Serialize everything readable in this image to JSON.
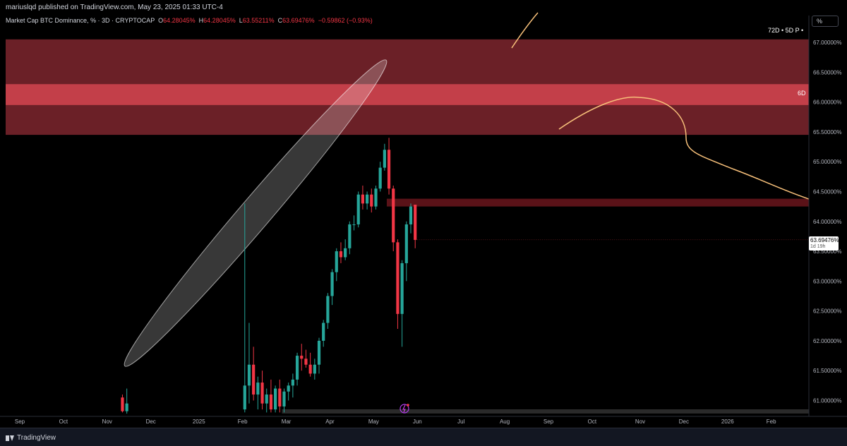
{
  "header": {
    "published": "mariuslqd published on TradingView.com, May 23, 2025 01:33 UTC-4"
  },
  "legend": {
    "symbol": "Market Cap BTC Dominance, % · 3D · CRYPTOCAP",
    "o_key": "O",
    "o_val": "64.28045%",
    "h_key": "H",
    "h_val": "64.28045%",
    "l_key": "L",
    "l_val": "63.55211%",
    "c_key": "C",
    "c_val": "63.69476%",
    "change": "−0.59862 (−0.93%)"
  },
  "scale_button": "%",
  "mini_legend": "72D • 5D P •",
  "zone_label": "6D",
  "last_price": {
    "value": "63.69476%",
    "countdown": "1d 19h"
  },
  "footer": {
    "brand": "TradingView"
  },
  "colors": {
    "up": "#26a69a",
    "down": "#f23645",
    "zone": "#c23b47",
    "zone_core": "#e04a56",
    "curve": "#f7c07a",
    "ellipse": "#ffffff"
  },
  "chart_data": {
    "type": "candlestick",
    "y_axis_ticks": [
      "67.00000%",
      "66.50000%",
      "66.00000%",
      "65.50000%",
      "65.00000%",
      "64.50000%",
      "64.00000%",
      "63.50000%",
      "63.00000%",
      "62.50000%",
      "62.00000%",
      "61.50000%",
      "61.00000%"
    ],
    "y_axis_values": [
      67.0,
      66.5,
      66.0,
      65.5,
      65.0,
      64.5,
      64.0,
      63.5,
      63.0,
      62.5,
      62.0,
      61.5,
      61.0
    ],
    "ylim": [
      60.8,
      67.15
    ],
    "x_axis_ticks": [
      "Sep",
      "Oct",
      "Nov",
      "Dec",
      "2025",
      "Feb",
      "Mar",
      "Apr",
      "May",
      "Jun",
      "Jul",
      "Aug",
      "Sep",
      "Oct",
      "Nov",
      "Dec",
      "2026",
      "Feb"
    ],
    "x_tick_index": [
      0,
      10,
      20,
      30,
      41,
      51,
      61,
      71,
      81,
      91,
      101,
      111,
      121,
      131,
      142,
      152,
      162,
      172
    ],
    "candles": [
      {
        "i": 23.5,
        "o": 61.05,
        "h": 61.1,
        "l": 60.8,
        "c": 60.82
      },
      {
        "i": 24.5,
        "o": 60.82,
        "h": 61.2,
        "l": 60.78,
        "c": 60.95
      },
      {
        "i": 51.5,
        "o": 60.85,
        "h": 64.3,
        "l": 60.8,
        "c": 61.25
      },
      {
        "i": 52.5,
        "o": 61.25,
        "h": 62.3,
        "l": 60.95,
        "c": 61.6
      },
      {
        "i": 53.5,
        "o": 61.6,
        "h": 61.9,
        "l": 61.0,
        "c": 61.1
      },
      {
        "i": 54.5,
        "o": 61.1,
        "h": 61.4,
        "l": 60.85,
        "c": 61.3
      },
      {
        "i": 55.5,
        "o": 61.3,
        "h": 61.5,
        "l": 60.85,
        "c": 60.95
      },
      {
        "i": 56.5,
        "o": 60.95,
        "h": 61.2,
        "l": 60.8,
        "c": 61.1
      },
      {
        "i": 57.5,
        "o": 61.1,
        "h": 61.35,
        "l": 60.8,
        "c": 60.85
      },
      {
        "i": 58.5,
        "o": 60.85,
        "h": 61.25,
        "l": 60.8,
        "c": 61.2
      },
      {
        "i": 59.5,
        "o": 61.2,
        "h": 61.35,
        "l": 60.8,
        "c": 60.9
      },
      {
        "i": 60.5,
        "o": 60.9,
        "h": 61.2,
        "l": 60.8,
        "c": 61.15
      },
      {
        "i": 61.5,
        "o": 61.15,
        "h": 61.3,
        "l": 61.0,
        "c": 61.25
      },
      {
        "i": 62.5,
        "o": 61.25,
        "h": 61.45,
        "l": 61.05,
        "c": 61.35
      },
      {
        "i": 63.5,
        "o": 61.35,
        "h": 61.8,
        "l": 61.25,
        "c": 61.75
      },
      {
        "i": 64.5,
        "o": 61.75,
        "h": 61.95,
        "l": 61.5,
        "c": 61.7
      },
      {
        "i": 65.5,
        "o": 61.7,
        "h": 61.85,
        "l": 61.55,
        "c": 61.6
      },
      {
        "i": 66.5,
        "o": 61.6,
        "h": 61.8,
        "l": 61.4,
        "c": 61.45
      },
      {
        "i": 67.5,
        "o": 61.45,
        "h": 61.7,
        "l": 61.35,
        "c": 61.6
      },
      {
        "i": 68.5,
        "o": 61.6,
        "h": 62.05,
        "l": 61.45,
        "c": 62.0
      },
      {
        "i": 69.5,
        "o": 62.0,
        "h": 62.35,
        "l": 61.9,
        "c": 62.3
      },
      {
        "i": 70.5,
        "o": 62.3,
        "h": 62.8,
        "l": 62.2,
        "c": 62.75
      },
      {
        "i": 71.5,
        "o": 62.75,
        "h": 63.2,
        "l": 62.6,
        "c": 63.15
      },
      {
        "i": 72.5,
        "o": 63.15,
        "h": 63.55,
        "l": 63.0,
        "c": 63.5
      },
      {
        "i": 73.5,
        "o": 63.5,
        "h": 63.65,
        "l": 63.3,
        "c": 63.4
      },
      {
        "i": 74.5,
        "o": 63.4,
        "h": 63.7,
        "l": 63.35,
        "c": 63.55
      },
      {
        "i": 75.5,
        "o": 63.55,
        "h": 64.0,
        "l": 63.45,
        "c": 63.95
      },
      {
        "i": 76.5,
        "o": 63.95,
        "h": 64.1,
        "l": 63.85,
        "c": 63.95
      },
      {
        "i": 77.5,
        "o": 63.95,
        "h": 64.5,
        "l": 63.9,
        "c": 64.45
      },
      {
        "i": 78.5,
        "o": 64.45,
        "h": 64.6,
        "l": 64.2,
        "c": 64.3
      },
      {
        "i": 79.5,
        "o": 64.3,
        "h": 64.5,
        "l": 64.2,
        "c": 64.45
      },
      {
        "i": 80.5,
        "o": 64.45,
        "h": 64.55,
        "l": 64.15,
        "c": 64.25
      },
      {
        "i": 81.5,
        "o": 64.25,
        "h": 64.6,
        "l": 64.2,
        "c": 64.55
      },
      {
        "i": 82.5,
        "o": 64.55,
        "h": 65.0,
        "l": 64.5,
        "c": 64.9
      },
      {
        "i": 83.5,
        "o": 64.9,
        "h": 65.3,
        "l": 64.85,
        "c": 65.2
      },
      {
        "i": 84.5,
        "o": 65.2,
        "h": 65.4,
        "l": 64.45,
        "c": 64.55
      },
      {
        "i": 85.5,
        "o": 64.55,
        "h": 64.6,
        "l": 63.5,
        "c": 63.65
      },
      {
        "i": 86.5,
        "o": 63.65,
        "h": 63.7,
        "l": 62.2,
        "c": 62.45
      },
      {
        "i": 87.5,
        "o": 62.45,
        "h": 63.35,
        "l": 61.9,
        "c": 63.3
      },
      {
        "i": 88.5,
        "o": 63.3,
        "h": 64.0,
        "l": 63.0,
        "c": 63.95
      },
      {
        "i": 89.5,
        "o": 63.95,
        "h": 64.3,
        "l": 63.8,
        "c": 64.25
      },
      {
        "i": 90.5,
        "o": 64.28,
        "h": 64.28,
        "l": 63.55,
        "c": 63.69
      }
    ],
    "zones": [
      {
        "from": 65.45,
        "to": 67.05
      },
      {
        "from": 65.95,
        "to": 66.3
      },
      {
        "from": 64.25,
        "to": 64.38
      }
    ]
  }
}
